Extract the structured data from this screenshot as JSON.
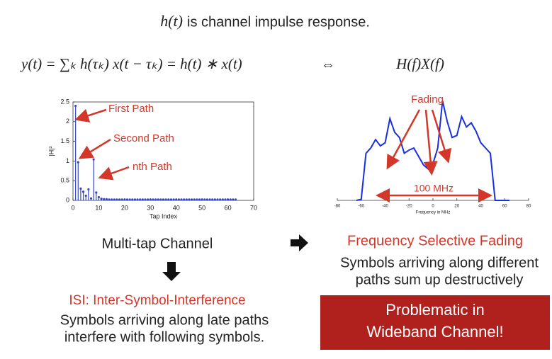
{
  "header": {
    "symbol": "h(t)",
    "text": "is channel impulse response."
  },
  "equation": {
    "left": "y(t) = ∑ₖ h(τₖ) x(t − τₖ)  = h(t) ∗ x(t)",
    "equiv": "⇔",
    "right": "H(f)X(f)"
  },
  "chart_data": [
    {
      "type": "stem",
      "xlabel": "Tap Index",
      "ylabel": "|H|²",
      "color": "#3344cc",
      "x": [
        1,
        2,
        3,
        4,
        5,
        6,
        7,
        8,
        9,
        10,
        11,
        12,
        13,
        14,
        15,
        16,
        17,
        18,
        19,
        20,
        21,
        22,
        23,
        24,
        25,
        26,
        27,
        28,
        29,
        30,
        31,
        32,
        33,
        34,
        35,
        36,
        37,
        38,
        39,
        40,
        41,
        42,
        43,
        44,
        45,
        46,
        47,
        48,
        49,
        50,
        51,
        52,
        53,
        54,
        55,
        56,
        57,
        58,
        59,
        60,
        61,
        62,
        63
      ],
      "values": [
        2.4,
        0.97,
        0.3,
        0.22,
        0.12,
        0.28,
        0.05,
        1.04,
        0.2,
        0.08,
        0.04,
        0.03,
        0.03,
        0.02,
        0.02,
        0.02,
        0.02,
        0.02,
        0.02,
        0.02,
        0.02,
        0.02,
        0.02,
        0.02,
        0.02,
        0.02,
        0.02,
        0.02,
        0.02,
        0.02,
        0.02,
        0.02,
        0.02,
        0.02,
        0.02,
        0.02,
        0.02,
        0.02,
        0.02,
        0.02,
        0.02,
        0.02,
        0.02,
        0.02,
        0.02,
        0.02,
        0.02,
        0.02,
        0.02,
        0.02,
        0.02,
        0.02,
        0.02,
        0.02,
        0.02,
        0.02,
        0.02,
        0.02,
        0.02,
        0.02,
        0.02,
        0.02,
        0.02
      ],
      "xlim": [
        0,
        70
      ],
      "xticks": [
        0,
        10,
        20,
        30,
        40,
        50,
        60,
        70
      ],
      "ylim": [
        0,
        2.5
      ],
      "yticks": [
        0,
        0.5,
        1,
        1.5,
        2,
        2.5
      ],
      "annotations": [
        "First Path",
        "Second Path",
        "nth Path"
      ]
    },
    {
      "type": "line",
      "xlabel": "Frequency in MHz",
      "color": "#1a2fe0",
      "x": [
        -64,
        -60,
        -56,
        -52,
        -48,
        -44,
        -40,
        -36,
        -32,
        -28,
        -24,
        -20,
        -16,
        -12,
        -8,
        -4,
        0,
        4,
        8,
        12,
        16,
        20,
        24,
        28,
        32,
        36,
        40,
        44,
        48,
        52,
        56,
        60,
        64
      ],
      "values": [
        0,
        0.01,
        0.45,
        0.5,
        0.58,
        0.52,
        0.55,
        0.78,
        0.65,
        0.6,
        0.45,
        0.48,
        0.5,
        0.42,
        0.34,
        0.3,
        0.35,
        0.5,
        0.95,
        0.75,
        0.6,
        0.62,
        0.8,
        0.7,
        0.74,
        0.66,
        0.55,
        0.5,
        0.45,
        0,
        0,
        0,
        0
      ],
      "xlim": [
        -80,
        80
      ],
      "xticks": [
        -80,
        -60,
        -40,
        -20,
        0,
        20,
        40,
        60,
        80
      ],
      "ylim": [
        0,
        1
      ],
      "annotations": [
        "Fading",
        "100 MHz"
      ]
    }
  ],
  "left_caption": {
    "title": "Multi-tap Channel",
    "subtitle": "ISI: Inter-Symbol-Interference",
    "lines": [
      "Symbols arriving along late paths",
      "interfere with following symbols."
    ]
  },
  "right_caption": {
    "title": "Frequency Selective Fading",
    "lines": [
      "Symbols arriving along different",
      "paths sum up destructively"
    ],
    "box": [
      "Problematic in",
      "Wideband Channel!"
    ]
  }
}
